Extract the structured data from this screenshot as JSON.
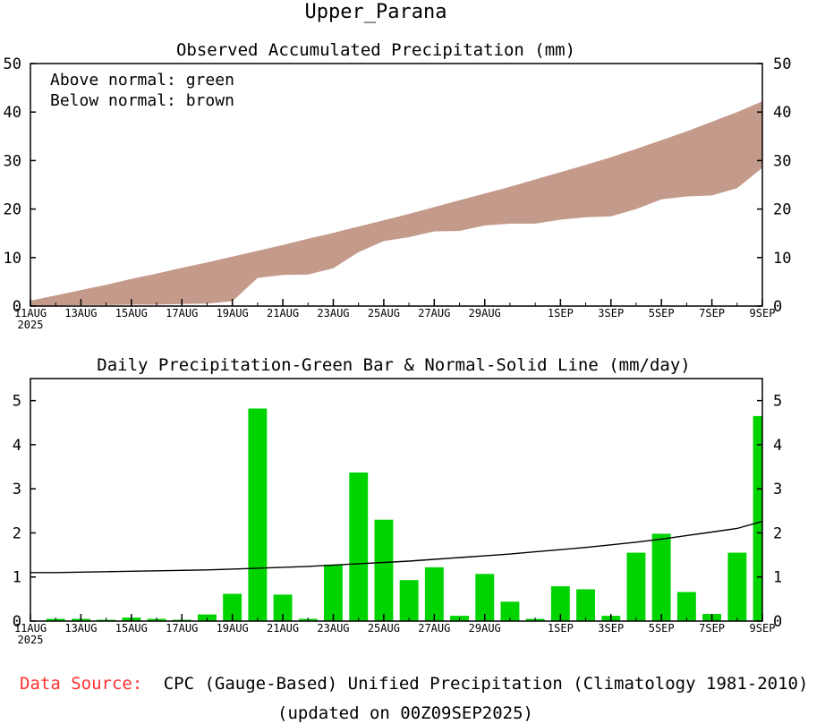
{
  "chart_title": "Upper_Parana",
  "colors": {
    "bar": "#00d400",
    "below": "#c49a8b",
    "above": "#00d400",
    "normal_line": "#000000",
    "source_label": "#ff3030"
  },
  "footer": {
    "source_label": "Data Source:",
    "source_text": "CPC (Gauge-Based) Unified Precipitation (Climatology 1981-2010)",
    "updated": "(updated on 00Z09SEP2025)"
  },
  "chart_data": [
    {
      "type": "area",
      "title": "Observed Accumulated Precipitation (mm)",
      "legend": [
        "Above normal: green",
        "Below normal: brown"
      ],
      "legend_position": "top-left",
      "xlabel": "",
      "ylabel": "",
      "ylim": [
        0,
        50
      ],
      "yticks": [
        0,
        10,
        20,
        30,
        40,
        50
      ],
      "x_range": [
        0,
        29
      ],
      "x_ticks": [
        {
          "x": 0,
          "label": "11AUG"
        },
        {
          "x": 2,
          "label": "13AUG"
        },
        {
          "x": 4,
          "label": "15AUG"
        },
        {
          "x": 6,
          "label": "17AUG"
        },
        {
          "x": 8,
          "label": "19AUG"
        },
        {
          "x": 10,
          "label": "21AUG"
        },
        {
          "x": 12,
          "label": "23AUG"
        },
        {
          "x": 14,
          "label": "25AUG"
        },
        {
          "x": 16,
          "label": "27AUG"
        },
        {
          "x": 18,
          "label": "29AUG"
        },
        {
          "x": 21,
          "label": "1SEP"
        },
        {
          "x": 23,
          "label": "3SEP"
        },
        {
          "x": 25,
          "label": "5SEP"
        },
        {
          "x": 27,
          "label": "7SEP"
        },
        {
          "x": 29,
          "label": "9SEP"
        }
      ],
      "year_label": "2025",
      "series": [
        {
          "name": "Observed accumulated",
          "values": [
            0.0,
            0.1,
            0.2,
            0.2,
            0.3,
            0.3,
            0.4,
            0.5,
            1.0,
            5.8,
            6.4,
            6.5,
            7.8,
            11.1,
            13.4,
            14.2,
            15.4,
            15.5,
            16.6,
            17.0,
            17.0,
            17.8,
            18.3,
            18.5,
            20.0,
            22.0,
            22.6,
            22.8,
            24.3,
            28.5
          ]
        },
        {
          "name": "Normal accumulated",
          "values": [
            1.1,
            2.2,
            3.3,
            4.4,
            5.6,
            6.7,
            7.9,
            9.0,
            10.2,
            11.4,
            12.6,
            13.9,
            15.1,
            16.4,
            17.7,
            19.0,
            20.4,
            21.8,
            23.2,
            24.6,
            26.1,
            27.6,
            29.1,
            30.7,
            32.4,
            34.2,
            36.0,
            38.0,
            40.0,
            42.2
          ]
        }
      ]
    },
    {
      "type": "bar",
      "title": "Daily Precipitation-Green Bar & Normal-Solid Line (mm/day)",
      "xlabel": "",
      "ylabel": "",
      "ylim": [
        0,
        5.5
      ],
      "yticks": [
        0,
        1,
        2,
        3,
        4,
        5
      ],
      "x_range": [
        0,
        29
      ],
      "x_ticks": [
        {
          "x": 0,
          "label": "11AUG"
        },
        {
          "x": 2,
          "label": "13AUG"
        },
        {
          "x": 4,
          "label": "15AUG"
        },
        {
          "x": 6,
          "label": "17AUG"
        },
        {
          "x": 8,
          "label": "19AUG"
        },
        {
          "x": 10,
          "label": "21AUG"
        },
        {
          "x": 12,
          "label": "23AUG"
        },
        {
          "x": 14,
          "label": "25AUG"
        },
        {
          "x": 16,
          "label": "27AUG"
        },
        {
          "x": 18,
          "label": "29AUG"
        },
        {
          "x": 21,
          "label": "1SEP"
        },
        {
          "x": 23,
          "label": "3SEP"
        },
        {
          "x": 25,
          "label": "5SEP"
        },
        {
          "x": 27,
          "label": "7SEP"
        },
        {
          "x": 29,
          "label": "9SEP"
        }
      ],
      "year_label": "2025",
      "series": [
        {
          "name": "Daily precipitation",
          "values": [
            0.0,
            0.05,
            0.05,
            0.03,
            0.08,
            0.05,
            0.03,
            0.15,
            0.62,
            4.82,
            0.6,
            0.05,
            1.28,
            3.37,
            2.3,
            0.93,
            1.22,
            0.12,
            1.07,
            0.44,
            0.05,
            0.79,
            0.72,
            0.12,
            1.55,
            1.98,
            0.66,
            0.16,
            1.55,
            4.65
          ]
        },
        {
          "name": "Normal",
          "values": [
            1.1,
            1.1,
            1.11,
            1.12,
            1.13,
            1.14,
            1.15,
            1.16,
            1.18,
            1.2,
            1.22,
            1.24,
            1.27,
            1.3,
            1.33,
            1.36,
            1.4,
            1.44,
            1.48,
            1.52,
            1.57,
            1.62,
            1.67,
            1.73,
            1.79,
            1.86,
            1.94,
            2.02,
            2.1,
            2.26
          ]
        }
      ]
    }
  ]
}
